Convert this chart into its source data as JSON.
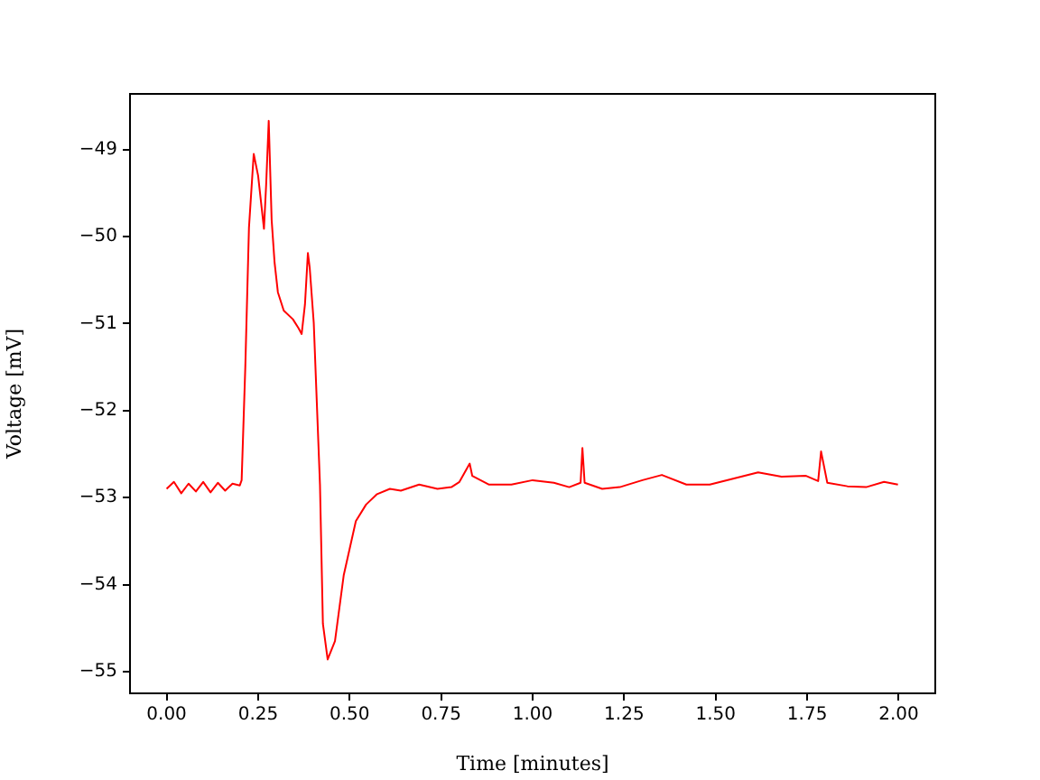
{
  "chart_data": {
    "type": "line",
    "xlabel": "Time [minutes]",
    "ylabel": "Voltage [mV]",
    "xlim": [
      -0.1,
      2.1
    ],
    "ylim": [
      -55.25,
      -48.36
    ],
    "xticks": [
      {
        "value": 0,
        "label": "0.00"
      },
      {
        "value": 0.25,
        "label": "0.25"
      },
      {
        "value": 0.5,
        "label": "0.50"
      },
      {
        "value": 0.75,
        "label": "0.75"
      },
      {
        "value": 1,
        "label": "1.00"
      },
      {
        "value": 1.25,
        "label": "1.25"
      },
      {
        "value": 1.5,
        "label": "1.50"
      },
      {
        "value": 1.75,
        "label": "1.75"
      },
      {
        "value": 2,
        "label": "2.00"
      }
    ],
    "yticks": [
      -55,
      -54,
      -53,
      -52,
      -51,
      -50,
      -49
    ],
    "grid": false,
    "legend": false,
    "marker": "none",
    "line_style": "solid",
    "series": [
      {
        "color": "#ff0000",
        "x": [
          0,
          0.02,
          0.04,
          0.06,
          0.08,
          0.1,
          0.12,
          0.14,
          0.16,
          0.18,
          0.2,
          0.205,
          0.215,
          0.225,
          0.238,
          0.25,
          0.266,
          0.272,
          0.279,
          0.287,
          0.295,
          0.304,
          0.32,
          0.345,
          0.36,
          0.369,
          0.378,
          0.386,
          0.391,
          0.402,
          0.419,
          0.427,
          0.44,
          0.46,
          0.484,
          0.517,
          0.545,
          0.575,
          0.61,
          0.64,
          0.69,
          0.74,
          0.778,
          0.8,
          0.828,
          0.835,
          0.88,
          0.942,
          1.0,
          1.058,
          1.1,
          1.131,
          1.136,
          1.142,
          1.19,
          1.238,
          1.3,
          1.353,
          1.42,
          1.484,
          1.55,
          1.616,
          1.68,
          1.747,
          1.78,
          1.788,
          1.805,
          1.86,
          1.911,
          1.96,
          1.998
        ],
        "values": [
          -52.9,
          -52.82,
          -52.95,
          -52.84,
          -52.93,
          -52.82,
          -52.94,
          -52.83,
          -52.92,
          -52.84,
          -52.86,
          -52.8,
          -51.5,
          -49.9,
          -49.05,
          -49.3,
          -49.91,
          -49.4,
          -48.67,
          -49.81,
          -50.3,
          -50.64,
          -50.85,
          -50.95,
          -51.05,
          -51.12,
          -50.78,
          -50.19,
          -50.36,
          -50.99,
          -52.85,
          -54.45,
          -54.86,
          -54.65,
          -53.89,
          -53.27,
          -53.08,
          -52.96,
          -52.9,
          -52.92,
          -52.85,
          -52.9,
          -52.88,
          -52.82,
          -52.61,
          -52.75,
          -52.85,
          -52.85,
          -52.8,
          -52.83,
          -52.88,
          -52.83,
          -52.43,
          -52.83,
          -52.9,
          -52.88,
          -52.8,
          -52.74,
          -52.85,
          -52.85,
          -52.78,
          -52.71,
          -52.76,
          -52.75,
          -52.81,
          -52.47,
          -52.83,
          -52.87,
          -52.88,
          -52.82,
          -52.85
        ]
      }
    ]
  }
}
